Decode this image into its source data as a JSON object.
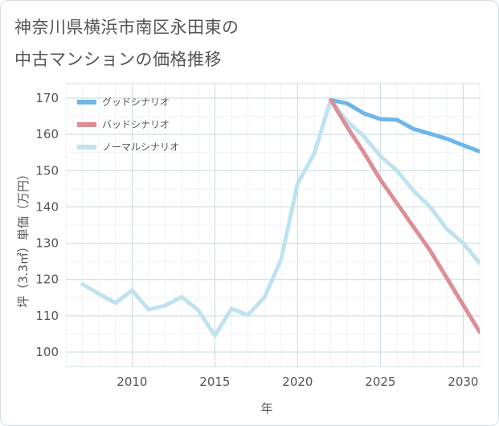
{
  "title_line1": "神奈川県横浜市南区永田東の",
  "title_line2": "中古マンションの価格推移",
  "chart_data": {
    "type": "line",
    "title": "神奈川県横浜市南区永田東の中古マンションの価格推移",
    "xlabel": "年",
    "ylabel": "坪（3.3㎡）単価（万円）",
    "xlim": [
      2006,
      2031
    ],
    "ylim": [
      96,
      174
    ],
    "xticks": [
      2010,
      2015,
      2020,
      2025,
      2030
    ],
    "yticks": [
      100,
      110,
      120,
      130,
      140,
      150,
      160,
      170
    ],
    "grid": true,
    "legend_position": "top-left",
    "series": [
      {
        "name": "グッドシナリオ",
        "color": "#6cb6ea",
        "x": [
          2022,
          2023,
          2024,
          2025,
          2026,
          2027,
          2028,
          2029,
          2030,
          2031
        ],
        "values": [
          169.5,
          168.5,
          165.8,
          164.2,
          164.0,
          161.5,
          160.2,
          158.8,
          157.0,
          155.3
        ]
      },
      {
        "name": "バッドシナリオ",
        "color": "#dc8e96",
        "x": [
          2022,
          2023,
          2024,
          2025,
          2026,
          2027,
          2028,
          2029,
          2030,
          2031
        ],
        "values": [
          169.5,
          162.0,
          155.0,
          147.5,
          141.0,
          134.5,
          128.0,
          120.5,
          113.0,
          105.5
        ]
      },
      {
        "name": "ノーマルシナリオ",
        "color": "#bfe2ef",
        "x": [
          2007,
          2008,
          2009,
          2010,
          2011,
          2012,
          2013,
          2014,
          2015,
          2016,
          2017,
          2018,
          2019,
          2020,
          2021,
          2022,
          2023,
          2024,
          2025,
          2026,
          2027,
          2028,
          2029,
          2030,
          2031
        ],
        "values": [
          118.7,
          116.0,
          113.5,
          117.0,
          111.7,
          112.8,
          115.2,
          111.5,
          104.5,
          111.9,
          110.2,
          115.1,
          125.5,
          146.5,
          154.7,
          169.5,
          163.5,
          159.5,
          154.0,
          150.0,
          144.5,
          140.0,
          134.0,
          130.0,
          124.5
        ]
      }
    ]
  }
}
